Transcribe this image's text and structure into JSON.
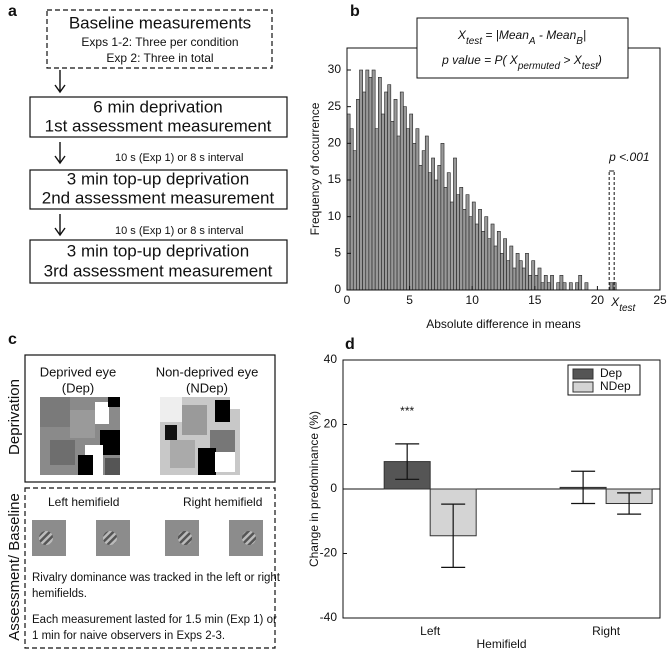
{
  "panel_labels": [
    "a",
    "b",
    "c",
    "d"
  ],
  "panel_a": {
    "baseline": [
      "Baseline measurements",
      "Exps 1-2: Three per condition",
      "Exp 2: Three in total"
    ],
    "boxes": [
      [
        "6 min deprivation",
        "1st assessment measurement"
      ],
      [
        "3 min top-up deprivation",
        "2nd assessment measurement"
      ],
      [
        "3 min top-up deprivation",
        "3rd assessment measurement"
      ]
    ],
    "intervals": [
      "10 s (Exp 1) or 8 s interval",
      "10 s (Exp 1) or 8 s interval"
    ]
  },
  "panel_c": {
    "deprivation_label": "Deprivation",
    "deprived_eye": [
      "Deprived eye",
      "(Dep)"
    ],
    "nondeprived_eye": [
      "Non-deprived eye",
      "(NDep)"
    ],
    "assessment_label": "Assessment/ Baseline",
    "left_hemifield": "Left hemifield",
    "right_hemifield": "Right hemifield",
    "notes": [
      "Rivalry dominance was tracked in the left or right",
      "hemifields.",
      "Each measurement lasted for 1.5 min (Exp 1) or",
      "1 min for naive observers in Exps 2-3."
    ]
  },
  "chart_data": [
    {
      "type": "histogram",
      "xlabel": "Absolute difference in means",
      "ylabel": "Frequency of occurrence",
      "color": "#999999",
      "bins": [
        0,
        0.25,
        0.5,
        0.75,
        1,
        1.25,
        1.5,
        1.75,
        2,
        2.25,
        2.5,
        2.75,
        3,
        3.25,
        3.5,
        3.75,
        4,
        4.25,
        4.5,
        4.75,
        5,
        5.25,
        5.5,
        5.75,
        6,
        6.25,
        6.5,
        6.75,
        7,
        7.25,
        7.5,
        7.75,
        8,
        8.25,
        8.5,
        8.75,
        9,
        9.25,
        9.5,
        9.75,
        10,
        10.25,
        10.5,
        10.75,
        11,
        11.25,
        11.5,
        11.75,
        12,
        12.25,
        12.5,
        12.75,
        13,
        13.25,
        13.5,
        13.75,
        14,
        14.25,
        14.5,
        14.75,
        15,
        15.25,
        15.5,
        15.75,
        16,
        16.25,
        16.5,
        16.75,
        17,
        17.25,
        17.5,
        17.75,
        18,
        18.25,
        18.5,
        18.75,
        19,
        19.25,
        19.5,
        19.75,
        20,
        20.25,
        20.5,
        20.75,
        21,
        21.25,
        21.5
      ],
      "counts": [
        24,
        22,
        19,
        26,
        30,
        27,
        30,
        29,
        30,
        22,
        29,
        24,
        27,
        28,
        23,
        26,
        21,
        27,
        25,
        22,
        24,
        20,
        22,
        17,
        19,
        21,
        16,
        18,
        15,
        17,
        20,
        14,
        16,
        12,
        18,
        13,
        14,
        11,
        13,
        10,
        12,
        9,
        11,
        8,
        10,
        7,
        9,
        6,
        8,
        5,
        7,
        4,
        6,
        3,
        5,
        4,
        3,
        5,
        2,
        4,
        2,
        3,
        1,
        2,
        1,
        2,
        0,
        1,
        2,
        1,
        0,
        1,
        0,
        1,
        2,
        0,
        1,
        0,
        0,
        0,
        0,
        0,
        0,
        0,
        1,
        1
      ],
      "xlim": [
        0,
        25
      ],
      "xticks": [
        0,
        5,
        10,
        15,
        20,
        25
      ],
      "ylim": [
        0,
        33
      ],
      "yticks": [
        0,
        5,
        10,
        15,
        20,
        25,
        30
      ],
      "formula": [
        [
          {
            "text": "X"
          },
          {
            "text": "test",
            "sub": true
          },
          {
            "text": " = |"
          },
          {
            "text": "Mean"
          },
          {
            "text": "A",
            "sub": true
          },
          {
            "text": " - "
          },
          {
            "text": "Mean"
          },
          {
            "text": "B",
            "sub": true
          },
          {
            "text": "|"
          }
        ],
        [
          {
            "text": "p value"
          },
          {
            "text": " = P( X"
          },
          {
            "text": "permuted",
            "sub": true
          },
          {
            "text": " > "
          },
          {
            "text": "X"
          },
          {
            "text": "test",
            "sub": true
          },
          {
            "text": ")"
          }
        ]
      ],
      "annotation": {
        "x": 21.1,
        "label": "X",
        "sub": "test",
        "text": "p <.001"
      }
    },
    {
      "type": "bar",
      "xlabel": "Hemifield",
      "ylabel": "Change in predominance (%)",
      "categories": [
        "Left",
        "Right"
      ],
      "series": [
        {
          "name": "Dep",
          "color": "#555555",
          "values": [
            8.5,
            0.5
          ],
          "errors": [
            5.5,
            5
          ]
        },
        {
          "name": "NDep",
          "color": "#d4d4d4",
          "values": [
            -14.5,
            -4.5
          ],
          "errors": [
            9.8,
            3.3
          ]
        }
      ],
      "ylim": [
        -40,
        40
      ],
      "yticks": [
        -40,
        -20,
        0,
        20,
        40
      ],
      "annotation": "***",
      "legend": "upper right"
    }
  ]
}
